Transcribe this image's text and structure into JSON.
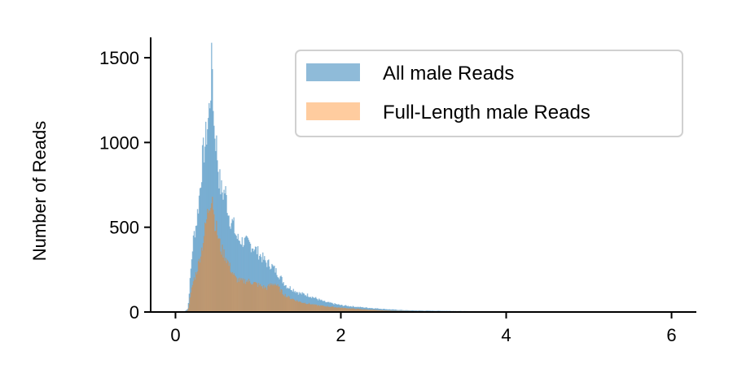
{
  "chart_data": {
    "type": "histogram",
    "title": "",
    "xlabel": "",
    "ylabel": "Number of Reads",
    "xlim": [
      -0.3,
      6.3
    ],
    "ylim": [
      0,
      1620
    ],
    "xticks": [
      0,
      2,
      4,
      6
    ],
    "yticks": [
      0,
      500,
      1000,
      1500
    ],
    "legend_position": "top-right",
    "grid": false,
    "series": [
      {
        "name": "All male Reads",
        "color": "#1f77b4",
        "alpha": 0.5,
        "x": [
          0.1,
          0.15,
          0.2,
          0.22,
          0.25,
          0.28,
          0.3,
          0.32,
          0.34,
          0.36,
          0.38,
          0.4,
          0.42,
          0.44,
          0.45,
          0.46,
          0.48,
          0.5,
          0.52,
          0.55,
          0.58,
          0.6,
          0.62,
          0.65,
          0.68,
          0.7,
          0.72,
          0.75,
          0.8,
          0.85,
          0.9,
          0.95,
          1.0,
          1.05,
          1.1,
          1.15,
          1.2,
          1.25,
          1.3,
          1.35,
          1.4,
          1.5,
          1.6,
          1.7,
          1.8,
          1.9,
          2.0,
          2.2,
          2.4,
          2.6,
          2.8,
          3.0,
          3.5,
          4.0,
          4.5,
          5.0,
          5.5,
          6.0
        ],
        "y": [
          0,
          20,
          350,
          450,
          520,
          650,
          760,
          880,
          950,
          1000,
          1080,
          1150,
          1300,
          1480,
          1420,
          1100,
          1050,
          960,
          820,
          720,
          700,
          720,
          650,
          560,
          530,
          520,
          470,
          430,
          420,
          410,
          400,
          380,
          350,
          320,
          290,
          280,
          250,
          220,
          180,
          150,
          140,
          110,
          100,
          80,
          60,
          50,
          40,
          30,
          22,
          15,
          10,
          8,
          5,
          3,
          2,
          1,
          1,
          0
        ]
      },
      {
        "name": "Full-Length male Reads",
        "color": "#ff7f0e",
        "alpha": 0.4,
        "x": [
          0.1,
          0.15,
          0.2,
          0.22,
          0.25,
          0.28,
          0.3,
          0.32,
          0.34,
          0.36,
          0.38,
          0.4,
          0.42,
          0.44,
          0.45,
          0.46,
          0.48,
          0.5,
          0.52,
          0.55,
          0.58,
          0.6,
          0.62,
          0.65,
          0.68,
          0.7,
          0.72,
          0.75,
          0.8,
          0.85,
          0.9,
          0.95,
          1.0,
          1.05,
          1.1,
          1.15,
          1.2,
          1.25,
          1.3,
          1.35,
          1.4,
          1.5,
          1.6,
          1.7,
          1.8,
          1.9,
          2.0,
          2.2,
          2.4,
          2.6,
          2.8,
          3.0,
          3.5,
          4.0,
          4.5,
          5.0,
          5.5,
          6.0
        ],
        "y": [
          0,
          10,
          150,
          190,
          230,
          290,
          340,
          380,
          440,
          500,
          560,
          620,
          660,
          700,
          690,
          580,
          520,
          480,
          430,
          370,
          350,
          330,
          310,
          270,
          240,
          220,
          200,
          190,
          180,
          185,
          180,
          170,
          160,
          150,
          140,
          160,
          170,
          140,
          110,
          90,
          80,
          60,
          50,
          40,
          35,
          30,
          25,
          18,
          12,
          8,
          6,
          5,
          3,
          2,
          1,
          1,
          0,
          0
        ]
      }
    ]
  }
}
